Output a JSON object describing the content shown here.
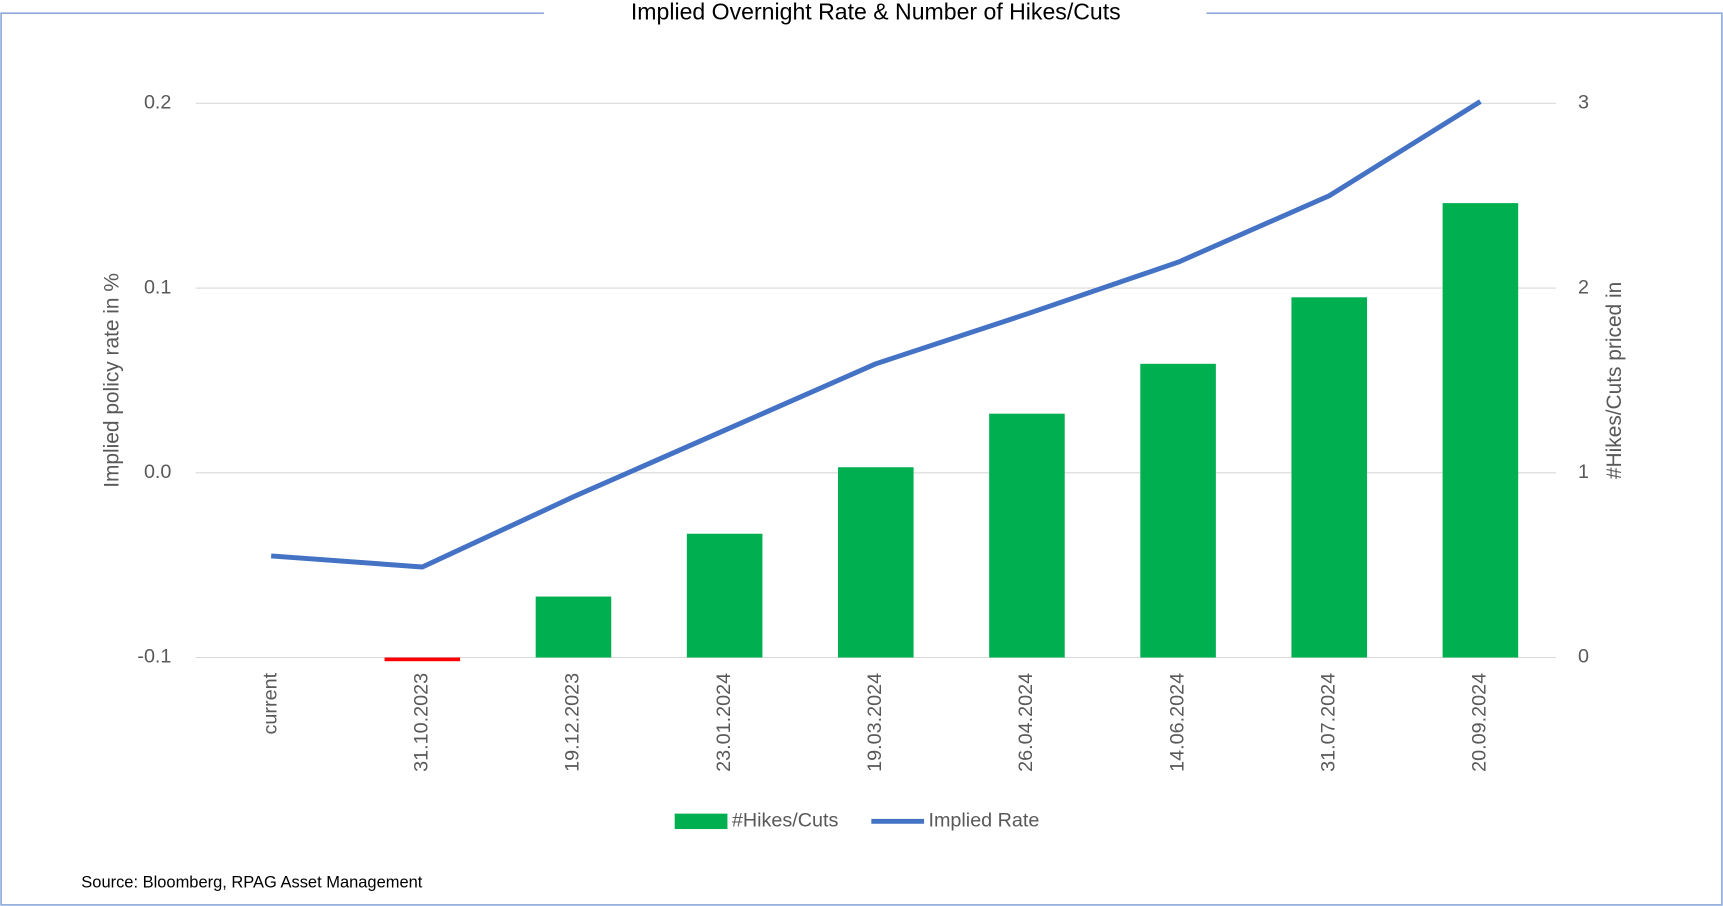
{
  "chart_data": {
    "type": "bar_line",
    "title": "Implied Overnight Rate & Number of Hikes/Cuts",
    "y_label": "Implied policy rate in %",
    "y2_label": "#Hikes/Cuts priced in",
    "source": "Source: Bloomberg, RPAG Asset Management",
    "categories": [
      "current",
      "31.10.2023",
      "19.12.2023",
      "23.01.2024",
      "19.03.2024",
      "26.04.2024",
      "14.06.2024",
      "31.07.2024",
      "20.09.2024"
    ],
    "series": [
      {
        "name": "#Hikes/Cuts",
        "type": "bar",
        "axis": "y2",
        "color": "#00b050",
        "negative_color": "#ff0000",
        "values": [
          0,
          -0.02,
          0.33,
          0.67,
          1.03,
          1.32,
          1.59,
          1.95,
          2.46
        ]
      },
      {
        "name": "Implied Rate",
        "type": "line",
        "axis": "y",
        "color": "#4472c4",
        "values": [
          -0.045,
          -0.051,
          -0.013,
          0.023,
          0.059,
          0.086,
          0.114,
          0.15,
          0.201
        ]
      }
    ],
    "ylim": [
      -0.1,
      0.2
    ],
    "yticks": [
      -0.1,
      {
        "value": 0,
        "label": "0.0"
      },
      0.1,
      0.2
    ],
    "y2lim": [
      0,
      3
    ],
    "y2ticks": [
      0,
      1,
      2,
      3
    ],
    "grid": true,
    "legend": "bottom"
  }
}
